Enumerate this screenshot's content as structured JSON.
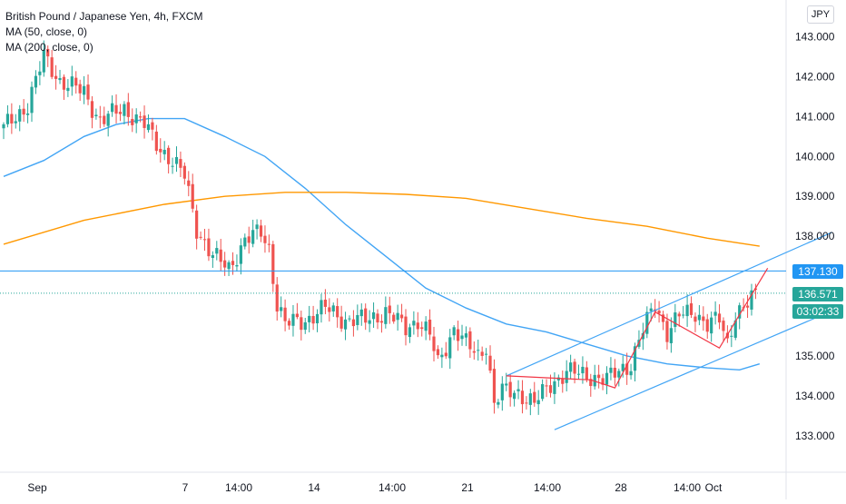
{
  "legend": {
    "symbol": "British Pound / Japanese Yen, 4h, FXCM",
    "ma50": "MA (50, close, 0)",
    "ma200": "MA (200, close, 0)"
  },
  "currency": "JPY",
  "price_tags": {
    "level": "137.130",
    "last": "136.571",
    "timer": "03:02:33"
  },
  "colors": {
    "up": "#26a69a",
    "down": "#ef5350",
    "ma50": "#42a5f5",
    "ma200": "#ff9800",
    "channel": "#42a5f5",
    "pattern": "#f23645",
    "level": "#2196f3"
  },
  "chart_data": {
    "type": "candlestick",
    "title": "British Pound / Japanese Yen, 4h, FXCM",
    "ylim": [
      132.2,
      143.5
    ],
    "y_ticks": [
      "143.000",
      "142.000",
      "141.000",
      "140.000",
      "139.000",
      "138.000",
      "135.000",
      "134.000",
      "133.000"
    ],
    "x_ticks": [
      "Sep",
      "7",
      "14:00",
      "14",
      "14:00",
      "21",
      "14:00",
      "28",
      "14:00",
      "Oct"
    ],
    "horizontal_levels": [
      {
        "value": 137.13,
        "style": "solid"
      },
      {
        "value": 136.571,
        "style": "dotted"
      }
    ],
    "anchors": [
      [
        0,
        140.7
      ],
      [
        6,
        141.3
      ],
      [
        10,
        142.5
      ],
      [
        14,
        141.9
      ],
      [
        20,
        141.6
      ],
      [
        24,
        140.9
      ],
      [
        30,
        141.2
      ],
      [
        35,
        140.8
      ],
      [
        38,
        140.3
      ],
      [
        42,
        139.9
      ],
      [
        45,
        139.5
      ],
      [
        48,
        138.2
      ],
      [
        52,
        137.5
      ],
      [
        56,
        137.2
      ],
      [
        60,
        137.9
      ],
      [
        64,
        138.1
      ],
      [
        66,
        137.7
      ],
      [
        68,
        136.3
      ],
      [
        70,
        135.8
      ],
      [
        75,
        135.9
      ],
      [
        80,
        136.2
      ],
      [
        85,
        135.9
      ],
      [
        90,
        135.9
      ],
      [
        95,
        136.1
      ],
      [
        100,
        135.7
      ],
      [
        103,
        135.9
      ],
      [
        106,
        135.5
      ],
      [
        108,
        134.8
      ],
      [
        112,
        135.7
      ],
      [
        115,
        135.3
      ],
      [
        118,
        135.0
      ],
      [
        120,
        135.3
      ],
      [
        122,
        133.8
      ],
      [
        124,
        134.1
      ],
      [
        128,
        134.1
      ],
      [
        132,
        133.8
      ],
      [
        136,
        134.3
      ],
      [
        140,
        134.6
      ],
      [
        146,
        134.5
      ],
      [
        150,
        134.4
      ],
      [
        154,
        134.7
      ],
      [
        156,
        134.8
      ],
      [
        158,
        135.4
      ],
      [
        162,
        136.3
      ],
      [
        165,
        135.6
      ],
      [
        168,
        136.0
      ],
      [
        172,
        136.1
      ],
      [
        175,
        135.8
      ],
      [
        178,
        135.9
      ],
      [
        180,
        135.3
      ],
      [
        182,
        136.1
      ],
      [
        185,
        136.3
      ],
      [
        187,
        136.5
      ]
    ],
    "series": [
      {
        "name": "MA (50, close, 0)",
        "type": "line",
        "points": [
          [
            0,
            139.5
          ],
          [
            10,
            139.9
          ],
          [
            20,
            140.5
          ],
          [
            28,
            140.8
          ],
          [
            36,
            140.95
          ],
          [
            45,
            140.95
          ],
          [
            55,
            140.5
          ],
          [
            65,
            140.0
          ],
          [
            75,
            139.2
          ],
          [
            85,
            138.3
          ],
          [
            95,
            137.5
          ],
          [
            105,
            136.7
          ],
          [
            115,
            136.2
          ],
          [
            125,
            135.8
          ],
          [
            135,
            135.6
          ],
          [
            145,
            135.3
          ],
          [
            155,
            135.0
          ],
          [
            165,
            134.8
          ],
          [
            175,
            134.7
          ],
          [
            183,
            134.65
          ],
          [
            188,
            134.8
          ]
        ]
      },
      {
        "name": "MA (200, close, 0)",
        "type": "line",
        "points": [
          [
            0,
            137.8
          ],
          [
            20,
            138.4
          ],
          [
            40,
            138.8
          ],
          [
            55,
            139.0
          ],
          [
            70,
            139.1
          ],
          [
            85,
            139.1
          ],
          [
            100,
            139.05
          ],
          [
            115,
            138.95
          ],
          [
            130,
            138.7
          ],
          [
            145,
            138.45
          ],
          [
            160,
            138.25
          ],
          [
            175,
            137.95
          ],
          [
            188,
            137.75
          ]
        ]
      }
    ],
    "annotations": [
      {
        "type": "channel-upper",
        "points": [
          [
            125,
            134.5
          ],
          [
            206,
            138.1
          ]
        ]
      },
      {
        "type": "channel-lower",
        "points": [
          [
            137,
            133.15
          ],
          [
            203,
            136.0
          ]
        ]
      },
      {
        "type": "pattern-line",
        "points": [
          [
            125,
            134.5
          ],
          [
            146,
            134.4
          ],
          [
            152,
            134.2
          ],
          [
            162,
            136.1
          ],
          [
            178,
            135.2
          ],
          [
            190,
            137.2
          ]
        ]
      }
    ]
  }
}
